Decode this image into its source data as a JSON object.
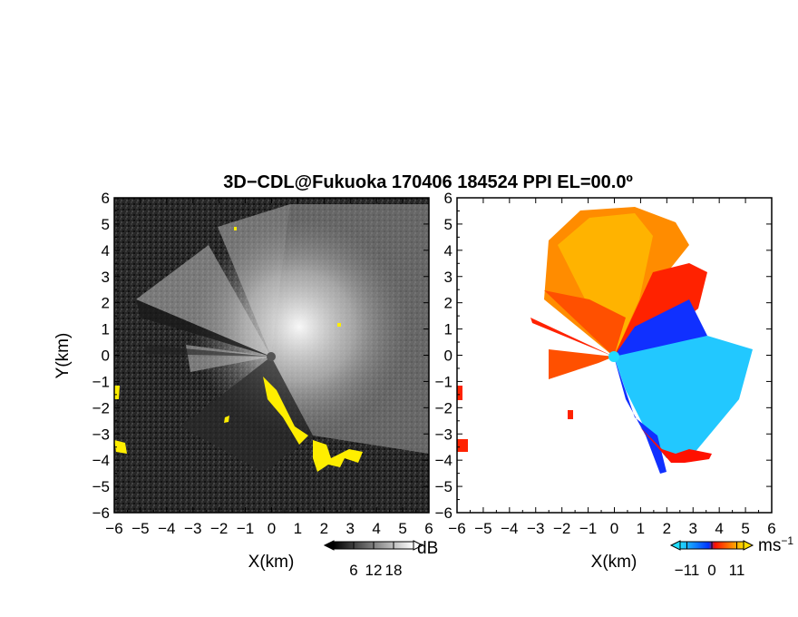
{
  "title": "3D−CDL@Fukuoka 170406 184524 PPI EL=00.0º",
  "chart_data": [
    {
      "type": "heatmap",
      "quantity": "reflectivity / SNR",
      "xlabel": "X(km)",
      "ylabel": "Y(km)",
      "xlim": [
        -6,
        6
      ],
      "ylim": [
        -6,
        6
      ],
      "xticks": [
        "−6",
        "−5",
        "−4",
        "−3",
        "−2",
        "−1",
        "0",
        "1",
        "2",
        "3",
        "4",
        "5",
        "6"
      ],
      "yticks": [
        "6",
        "5",
        "4",
        "3",
        "2",
        "1",
        "0",
        "−1",
        "−2",
        "−3",
        "−4",
        "−5",
        "−6"
      ],
      "colorbar": {
        "unit": "dB",
        "ticks": [
          "6",
          "12",
          "18"
        ],
        "range": [
          0,
          24
        ],
        "colormap": "grayscale"
      },
      "highlight_color": "#ffee00",
      "background_color": "#1a1a1a"
    },
    {
      "type": "heatmap",
      "quantity": "Doppler velocity",
      "xlabel": "X(km)",
      "xlim": [
        -6,
        6
      ],
      "ylim": [
        -6,
        6
      ],
      "xticks": [
        "−6",
        "−5",
        "−4",
        "−3",
        "−2",
        "−1",
        "0",
        "1",
        "2",
        "3",
        "4",
        "5",
        "6"
      ],
      "colorbar": {
        "unit": "ms",
        "unit_exp": "−1",
        "ticks": [
          "−11",
          "0",
          "11"
        ],
        "range": [
          -14,
          14
        ],
        "colormap": [
          "#22ddff",
          "#0033ff",
          "#ff1100",
          "#ffdd00"
        ]
      },
      "background_color": "#ffffff"
    }
  ]
}
